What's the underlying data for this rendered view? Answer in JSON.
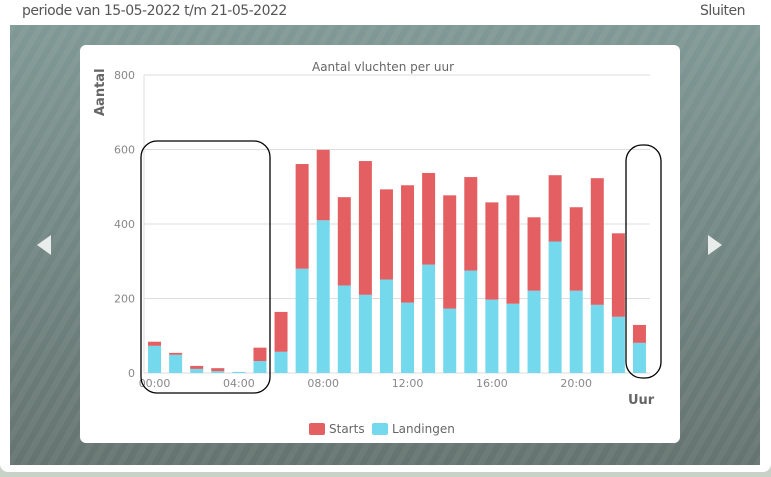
{
  "header": {
    "title": "periode van 15-05-2022 t/m 21-05-2022",
    "close_label": "Sluiten"
  },
  "nav": {
    "prev_icon": "chevron-left-icon",
    "next_icon": "chevron-right-icon"
  },
  "chart_data": {
    "type": "bar",
    "stacked": true,
    "title": "Aantal vluchten per uur",
    "xlabel": "Uur",
    "ylabel": "Aantal",
    "ylim": [
      0,
      800
    ],
    "yticks": [
      "0",
      "200",
      "400",
      "600",
      "800"
    ],
    "xtick_labels": [
      "00:00",
      "04:00",
      "08:00",
      "12:00",
      "16:00",
      "20:00"
    ],
    "categories": [
      "00:00",
      "01:00",
      "02:00",
      "03:00",
      "04:00",
      "05:00",
      "06:00",
      "07:00",
      "08:00",
      "09:00",
      "10:00",
      "11:00",
      "12:00",
      "13:00",
      "14:00",
      "15:00",
      "16:00",
      "17:00",
      "18:00",
      "19:00",
      "20:00",
      "21:00",
      "22:00",
      "23:00"
    ],
    "grid": true,
    "legend_position": "bottom",
    "series": [
      {
        "name": "Landingen",
        "color": "#74d9ec",
        "values": [
          73,
          49,
          11,
          5,
          3,
          32,
          57,
          280,
          410,
          235,
          210,
          251,
          189,
          291,
          173,
          275,
          197,
          186,
          221,
          353,
          221,
          183,
          151,
          81
        ]
      },
      {
        "name": "Starts",
        "color": "#e35f61",
        "values": [
          11,
          5,
          8,
          8,
          0,
          36,
          107,
          281,
          189,
          237,
          359,
          242,
          315,
          246,
          304,
          251,
          261,
          291,
          197,
          178,
          224,
          340,
          224,
          48
        ]
      }
    ]
  }
}
